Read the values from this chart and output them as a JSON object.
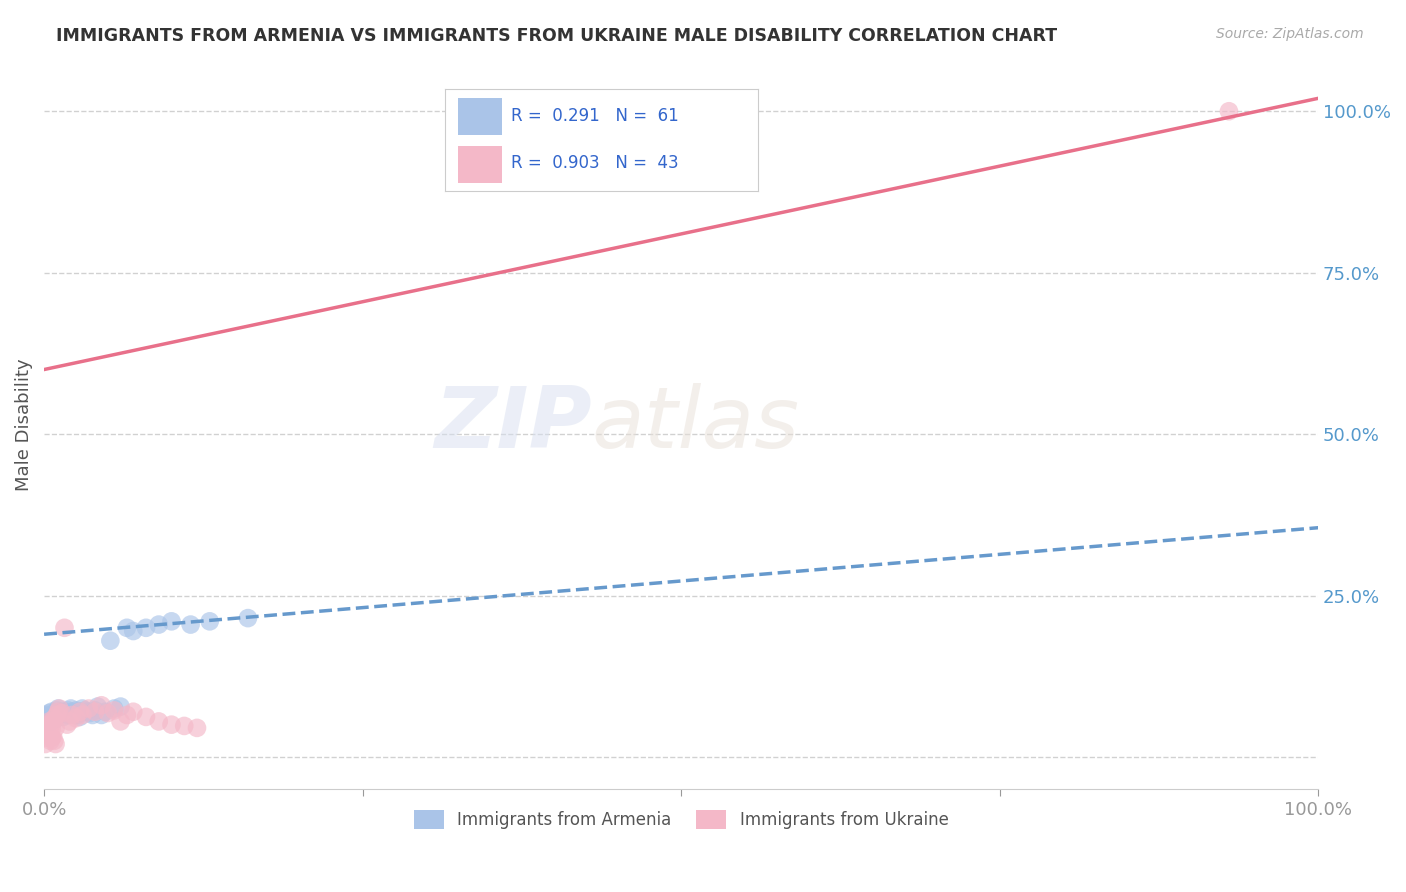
{
  "title": "IMMIGRANTS FROM ARMENIA VS IMMIGRANTS FROM UKRAINE MALE DISABILITY CORRELATION CHART",
  "source": "Source: ZipAtlas.com",
  "ylabel": "Male Disability",
  "xlim": [
    0,
    1.0
  ],
  "ylim": [
    -0.05,
    1.08
  ],
  "y_ticks": [
    0.0,
    0.25,
    0.5,
    0.75,
    1.0
  ],
  "y_tick_labels": [
    "",
    "25.0%",
    "50.0%",
    "75.0%",
    "100.0%"
  ],
  "grid_color": "#cccccc",
  "background_color": "#ffffff",
  "watermark": "ZIPatlas",
  "armenia_color": "#aac4e8",
  "ukraine_color": "#f4b8c8",
  "armenia_line_color": "#6699cc",
  "ukraine_line_color": "#e8708a",
  "armenia_label": "Immigrants from Armenia",
  "ukraine_label": "Immigrants from Ukraine",
  "armenia_R": 0.291,
  "armenia_N": 61,
  "ukraine_R": 0.903,
  "ukraine_N": 43,
  "armenia_line_x0": 0.0,
  "armenia_line_y0": 0.19,
  "armenia_line_x1": 1.0,
  "armenia_line_y1": 0.355,
  "ukraine_line_x0": 0.0,
  "ukraine_line_y0": 0.6,
  "ukraine_line_x1": 1.0,
  "ukraine_line_y1": 1.02,
  "armenia_x": [
    0.002,
    0.003,
    0.004,
    0.005,
    0.006,
    0.007,
    0.008,
    0.009,
    0.01,
    0.011,
    0.012,
    0.013,
    0.014,
    0.015,
    0.016,
    0.017,
    0.018,
    0.019,
    0.02,
    0.021,
    0.022,
    0.023,
    0.024,
    0.025,
    0.026,
    0.027,
    0.028,
    0.029,
    0.03,
    0.032,
    0.034,
    0.036,
    0.038,
    0.04,
    0.042,
    0.045,
    0.048,
    0.052,
    0.055,
    0.06,
    0.065,
    0.07,
    0.08,
    0.09,
    0.1,
    0.115,
    0.13,
    0.16,
    0.001,
    0.001,
    0.002,
    0.003,
    0.003,
    0.004,
    0.005,
    0.006,
    0.007,
    0.008,
    0.009,
    0.01,
    0.012
  ],
  "armenia_y": [
    0.065,
    0.06,
    0.068,
    0.055,
    0.07,
    0.065,
    0.06,
    0.068,
    0.072,
    0.075,
    0.065,
    0.07,
    0.068,
    0.062,
    0.07,
    0.068,
    0.065,
    0.072,
    0.068,
    0.075,
    0.07,
    0.068,
    0.065,
    0.072,
    0.065,
    0.07,
    0.062,
    0.068,
    0.075,
    0.072,
    0.07,
    0.068,
    0.065,
    0.072,
    0.078,
    0.065,
    0.07,
    0.18,
    0.075,
    0.078,
    0.2,
    0.195,
    0.2,
    0.205,
    0.21,
    0.205,
    0.21,
    0.215,
    0.06,
    0.058,
    0.062,
    0.063,
    0.058,
    0.06,
    0.055,
    0.062,
    0.06,
    0.058,
    0.062,
    0.065,
    0.068
  ],
  "ukraine_x": [
    0.001,
    0.002,
    0.003,
    0.004,
    0.005,
    0.006,
    0.007,
    0.008,
    0.009,
    0.01,
    0.011,
    0.012,
    0.014,
    0.016,
    0.018,
    0.02,
    0.022,
    0.025,
    0.028,
    0.03,
    0.035,
    0.04,
    0.045,
    0.05,
    0.055,
    0.06,
    0.065,
    0.07,
    0.08,
    0.09,
    0.1,
    0.11,
    0.12,
    0.001,
    0.002,
    0.003,
    0.004,
    0.005,
    0.006,
    0.007,
    0.008,
    0.009,
    0.93
  ],
  "ukraine_y": [
    0.04,
    0.05,
    0.045,
    0.055,
    0.05,
    0.045,
    0.055,
    0.06,
    0.045,
    0.065,
    0.07,
    0.075,
    0.068,
    0.2,
    0.05,
    0.055,
    0.065,
    0.06,
    0.07,
    0.065,
    0.075,
    0.07,
    0.08,
    0.068,
    0.072,
    0.055,
    0.065,
    0.07,
    0.062,
    0.055,
    0.05,
    0.048,
    0.045,
    0.02,
    0.03,
    0.035,
    0.04,
    0.025,
    0.03,
    0.032,
    0.025,
    0.02,
    1.0
  ]
}
